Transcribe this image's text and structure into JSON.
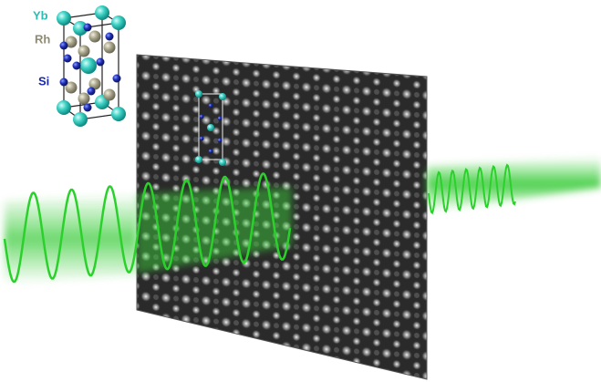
{
  "legend": [
    {
      "label": "Yb"
    },
    {
      "label": "Rh"
    },
    {
      "label": "Si"
    }
  ]
}
